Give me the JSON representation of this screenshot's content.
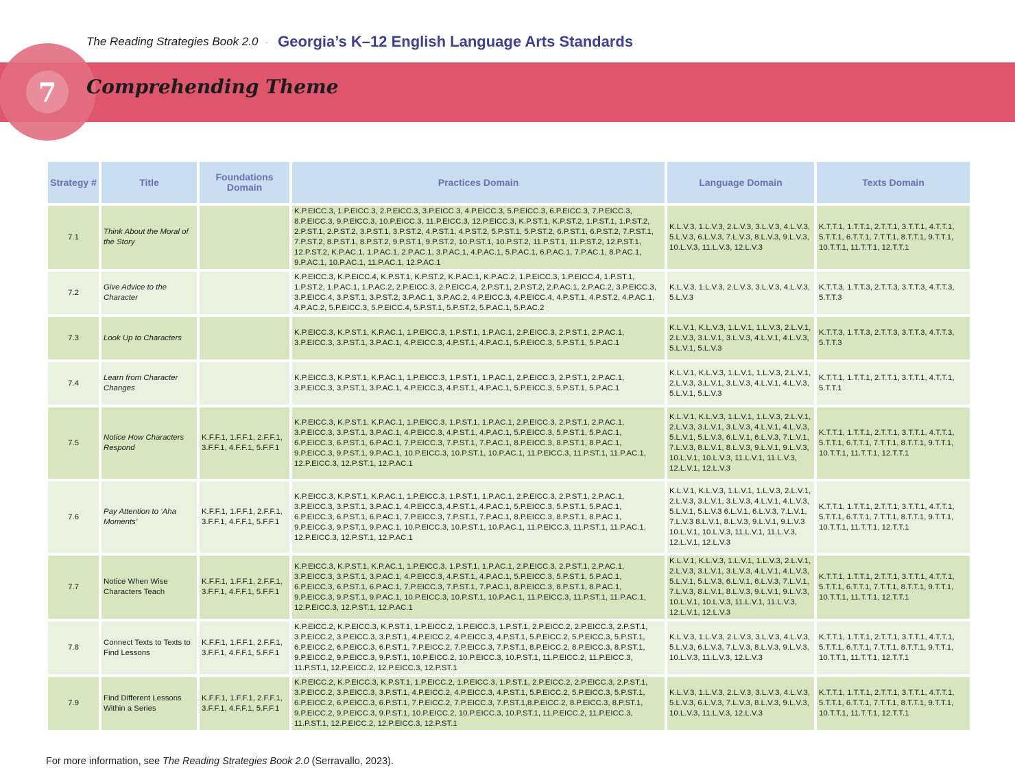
{
  "header": {
    "book_title": "The Reading Strategies Book 2.0",
    "separator": "·",
    "standards_title": "Georgia’s K–12 English Language Arts Standards"
  },
  "chapter": {
    "number": "7",
    "title": "Comprehending Theme"
  },
  "colors": {
    "banner": "#df556b",
    "header_row": "#c9def0",
    "header_text": "#6b6fb0",
    "row_dark": "#d8e5bf",
    "row_light": "#eaf1de",
    "standards_title": "#3d3f8f"
  },
  "table": {
    "headers": {
      "strategy": "Strategy #",
      "title": "Title",
      "foundations": "Foundations Domain",
      "practices": "Practices Domain",
      "language": "Language Domain",
      "texts": "Texts Domain"
    },
    "rows": [
      {
        "num": "7.1",
        "title": "Think About the Moral of the Story",
        "title_italic": true,
        "foundations": "",
        "practices": "K.P.EICC.3, 1.P.EICC.3, 2.P.EICC.3, 3.P.EICC.3, 4.P.EICC.3, 5.P.EICC.3, 6.P.EICC.3, 7.P.EICC.3, 8.P.EICC.3, 9.P.EICC.3, 10.P.EICC.3, 11.P.EICC.3, 12.P.EICC.3, K.P.ST.1, K.P.ST.2, 1.P.ST.1, 1.P.ST.2, 2.P.ST.1, 2.P.ST.2, 3.P.ST.1, 3.P.ST.2, 4.P.ST.1, 4.P.ST.2, 5.P.ST.1, 5.P.ST.2, 6.P.ST.1, 6.P.ST.2, 7.P.ST.1, 7.P.ST.2, 8.P.ST.1, 8.P.ST.2, 9.P.ST.1, 9.P.ST.2, 10.P.ST.1, 10.P.ST.2, 11.P.ST.1, 11.P.ST.2, 12.P.ST.1, 12.P.ST.2, K.P.AC.1, 1.P.AC.1, 2.P.AC.1, 3.P.AC.1, 4.P.AC.1, 5.P.AC.1, 6.P.AC.1, 7.P.AC.1, 8.P.AC.1, 9.P.AC.1, 10.P.AC.1, 11.P.AC.1, 12.P.AC.1",
        "language": "K.L.V.3, 1.L.V.3, 2.L.V.3, 3.L.V.3, 4.L.V.3, 5.L.V.3, 6.L.V.3, 7.L.V.3, 8.L.V.3, 9.L.V.3, 10.L.V.3, 11.L.V.3, 12.L.V.3",
        "texts": "K.T.T.1, 1.T.T.1, 2.T.T.1, 3.T.T.1, 4.T.T.1, 5.T.T.1, 6.T.T.1, 7.T.T.1, 8.T.T.1, 9.T.T.1, 10.T.T.1, 11.T.T.1, 12.T.T.1"
      },
      {
        "num": "7.2",
        "title": "Give Advice to the Character",
        "title_italic": true,
        "foundations": "",
        "practices": "K.P.EICC.3, K.P.EICC.4, K.P.ST.1, K.P.ST.2, K.P.AC.1, K.P.AC.2, 1.P.EICC.3, 1.P.EICC.4, 1.P.ST.1, 1.P.ST.2, 1.P.AC.1, 1.P.AC.2, 2.P.EICC.3, 2.P.EICC.4, 2.P.ST.1, 2.P.ST.2, 2.P.AC.1, 2.P.AC.2, 3.P.EICC.3, 3.P.EICC.4, 3.P.ST.1, 3.P.ST.2, 3.P.AC.1, 3.P.AC.2, 4.P.EICC.3, 4.P.EICC.4, 4.P.ST.1, 4.P.ST.2, 4.P.AC.1, 4.P.AC.2, 5.P.EICC.3, 5.P.EICC.4, 5.P.ST.1, 5.P.ST.2, 5.P.AC.1, 5.P.AC.2",
        "language": "K.L.V.3, 1.L.V.3, 2.L.V.3, 3.L.V.3, 4.L.V.3, 5.L.V.3",
        "texts": "K.T.T.3, 1.T.T.3, 2.T.T.3, 3.T.T.3, 4.T.T.3, 5.T.T.3"
      },
      {
        "num": "7.3",
        "title": "Look Up to Characters",
        "title_italic": true,
        "foundations": "",
        "practices": "K.P.EICC.3, K.P.ST.1, K.P.AC.1, 1.P.EICC.3, 1.P.ST.1, 1.P.AC.1, 2.P.EICC.3, 2.P.ST.1, 2.P.AC.1, 3.P.EICC.3, 3.P.ST.1, 3.P.AC.1, 4.P.EICC.3, 4.P.ST.1, 4.P.AC.1, 5.P.EICC.3, 5.P.ST.1, 5.P.AC.1",
        "language": "K.L.V.1, K.L.V.3, 1.L.V.1, 1.L.V.3, 2.L.V.1, 2.L.V.3, 3.L.V.1, 3.L.V.3, 4.L.V.1, 4.L.V.3, 5.L.V.1, 5.L.V.3",
        "texts": "K.T.T.3, 1.T.T.3, 2.T.T.3, 3.T.T.3, 4.T.T.3, 5.T.T.3"
      },
      {
        "num": "7.4",
        "title": "Learn from Character Changes",
        "title_italic": true,
        "foundations": "",
        "practices": "K.P.EICC.3, K.P.ST.1, K.P.AC.1, 1.P.EICC.3, 1.P.ST.1, 1.P.AC.1, 2.P.EICC.3, 2.P.ST.1, 2.P.AC.1, 3.P.EICC.3, 3.P.ST.1, 3.P.AC.1, 4.P.EICC.3, 4.P.ST.1, 4.P.AC.1, 5.P.EICC.3, 5.P.ST.1, 5.P.AC.1",
        "language": "K.L.V.1, K.L.V.3, 1.L.V.1, 1.L.V.3, 2.L.V.1, 2.L.V.3, 3.L.V.1, 3.L.V.3, 4.L.V.1, 4.L.V.3, 5.L.V.1, 5.L.V.3",
        "texts": "K.T.T.1, 1.T.T.1, 2.T.T.1, 3.T.T.1, 4.T.T.1, 5.T.T.1"
      },
      {
        "num": "7.5",
        "title": "Notice How Characters Respond",
        "title_italic": true,
        "foundations": "K.F.F.1, 1.F.F.1, 2.F.F.1, 3.F.F.1, 4.F.F.1, 5.F.F.1",
        "practices": "K.P.EICC.3, K.P.ST.1, K.P.AC.1, 1.P.EICC.3, 1.P.ST.1, 1.P.AC.1, 2.P.EICC.3, 2.P.ST.1, 2.P.AC.1, 3.P.EICC.3, 3.P.ST.1, 3.P.AC.1, 4.P.EICC.3, 4.P.ST.1, 4.P.AC.1, 5.P.EICC.3, 5.P.ST.1, 5.P.AC.1, 6.P.EICC.3, 6.P.ST.1, 6.P.AC.1, 7.P.EICC.3, 7.P.ST.1, 7.P.AC.1, 8.P.EICC.3, 8.P.ST.1, 8.P.AC.1, 9.P.EICC.3, 9.P.ST.1, 9.P.AC.1, 10.P.EICC.3, 10.P.ST.1, 10.P.AC.1, 11.P.EICC.3, 11.P.ST.1, 11.P.AC.1, 12.P.EICC.3, 12.P.ST.1, 12.P.AC.1",
        "language": "K.L.V.1, K.L.V.3, 1.L.V.1, 1.L.V.3, 2.L.V.1, 2.L.V.3, 3.L.V.1, 3.L.V.3, 4.L.V.1, 4.L.V.3, 5.L.V.1, 5.L.V.3, 6.L.V.1, 6.L.V.3, 7.L.V.1, 7.L.V.3, 8.L.V.1, 8.L.V.3, 9.L.V.1, 9.L.V.3, 10.L.V.1, 10.L.V.3, 11.L.V.1, 11.L.V.3, 12.L.V.1, 12.L.V.3",
        "texts": "K.T.T.1, 1.T.T.1, 2.T.T.1, 3.T.T.1, 4.T.T.1, 5.T.T.1, 6.T.T.1, 7.T.T.1, 8.T.T.1, 9.T.T.1, 10.T.T.1, 11.T.T.1, 12.T.T.1"
      },
      {
        "num": "7.6",
        "title": "Pay Attention to ‘Aha Moments’",
        "title_italic": true,
        "foundations": "K.F.F.1, 1.F.F.1, 2.F.F.1, 3.F.F.1, 4.F.F.1, 5.F.F.1",
        "practices": "K.P.EICC.3, K.P.ST.1, K.P.AC.1, 1.P.EICC.3, 1.P.ST.1, 1.P.AC.1, 2.P.EICC.3, 2.P.ST.1, 2.P.AC.1, 3.P.EICC.3, 3.P.ST.1, 3.P.AC.1, 4.P.EICC.3, 4.P.ST.1, 4.P.AC.1, 5.P.EICC.3, 5.P.ST.1, 5.P.AC.1, 6.P.EICC.3, 6.P.ST.1, 6.P.AC.1, 7.P.EICC.3, 7.P.ST.1, 7.P.AC.1, 8.P.EICC.3, 8.P.ST.1, 8.P.AC.1, 9.P.EICC.3, 9.P.ST.1, 9.P.AC.1, 10.P.EICC.3, 10.P.ST.1, 10.P.AC.1, 11.P.EICC.3, 11.P.ST.1, 11.P.AC.1, 12.P.EICC.3, 12.P.ST.1, 12.P.AC.1",
        "language": "K.L.V.1, K.L.V.3, 1.L.V.1, 1.L.V.3, 2.L.V.1, 2.L.V.3, 3.L.V.1, 3.L.V.3, 4.L.V.1, 4.L.V.3, 5.L.V.1, 5.L.V.3 6.L.V.1, 6.L.V.3, 7.L.V.1, 7.L.V.3 8.L.V.1, 8.L.V.3, 9.L.V.1, 9.L.V.3 10.L.V.1, 10.L.V.3, 11.L.V.1, 11.L.V.3, 12.L.V.1, 12.L.V.3",
        "texts": "K.T.T.1, 1.T.T.1, 2.T.T.1, 3.T.T.1, 4.T.T.1, 5.T.T.1, 6.T.T.1, 7.T.T.1, 8.T.T.1, 9.T.T.1, 10.T.T.1, 11.T.T.1, 12.T.T.1"
      },
      {
        "num": "7.7",
        "title": "Notice When Wise Characters Teach",
        "title_italic": false,
        "foundations": "K.F.F.1, 1.F.F.1, 2.F.F.1, 3.F.F.1, 4.F.F.1, 5.F.F.1",
        "practices": "K.P.EICC.3, K.P.ST.1, K.P.AC.1, 1.P.EICC.3, 1.P.ST.1, 1.P.AC.1, 2.P.EICC.3, 2.P.ST.1, 2.P.AC.1, 3.P.EICC.3, 3.P.ST.1, 3.P.AC.1, 4.P.EICC.3, 4.P.ST.1, 4.P.AC.1, 5.P.EICC.3, 5.P.ST.1, 5.P.AC.1, 6.P.EICC.3, 6.P.ST.1, 6.P.AC.1, 7.P.EICC.3, 7.P.ST.1, 7.P.AC.1, 8.P.EICC.3, 8.P.ST.1, 8.P.AC.1, 9.P.EICC.3, 9.P.ST.1, 9.P.AC.1, 10.P.EICC.3, 10.P.ST.1, 10.P.AC.1, 11.P.EICC.3, 11.P.ST.1, 11.P.AC.1, 12.P.EICC.3, 12.P.ST.1, 12.P.AC.1",
        "language": "K.L.V.1, K.L.V.3, 1.L.V.1, 1.L.V.3, 2.L.V.1, 2.L.V.3, 3.L.V.1, 3.L.V.3, 4.L.V.1, 4.L.V.3, 5.L.V.1, 5.L.V.3, 6.L.V.1, 6.L.V.3, 7.L.V.1, 7.L.V.3, 8.L.V.1, 8.L.V.3, 9.L.V.1, 9.L.V.3, 10.L.V.1, 10.L.V.3, 11.L.V.1, 11.L.V.3, 12.L.V.1, 12.L.V.3",
        "texts": "K.T.T.1, 1.T.T.1, 2.T.T.1, 3.T.T.1, 4.T.T.1, 5.T.T.1, 6.T.T.1, 7.T.T.1, 8.T.T.1, 9.T.T.1, 10.T.T.1, 11.T.T.1, 12.T.T.1"
      },
      {
        "num": "7.8",
        "title": "Connect Texts to Texts to Find Lessons",
        "title_italic": false,
        "foundations": "K.F.F.1, 1.F.F.1, 2.F.F.1, 3.F.F.1, 4.F.F.1, 5.F.F.1",
        "practices": "K.P.EICC.2, K.P.EICC.3, K.P.ST.1, 1.P.EICC.2, 1.P.EICC.3, 1.P.ST.1, 2.P.EICC.2, 2.P.EICC.3, 2.P.ST.1, 3.P.EICC.2, 3.P.EICC.3, 3.P.ST.1, 4.P.EICC.2, 4.P.EICC.3, 4.P.ST.1, 5.P.EICC.2, 5.P.EICC.3, 5.P.ST.1, 6.P.EICC.2, 6.P.EICC.3, 6.P.ST.1, 7.P.EICC.2, 7.P.EICC.3, 7.P.ST.1, 8.P.EICC.2, 8.P.EICC.3, 8.P.ST.1, 9.P.EICC.2, 9.P.EICC.3, 9.P.ST.1, 10.P.EICC.2, 10.P.EICC.3, 10.P.ST.1, 11.P.EICC.2, 11.P.EICC.3, 11.P.ST.1, 12.P.EICC.2, 12.P.EICC.3, 12.P.ST.1",
        "language": "K.L.V.3, 1.L.V.3, 2.L.V.3, 3.L.V.3, 4.L.V.3, 5.L.V.3, 6.L.V.3, 7.L.V.3, 8.L.V.3, 9.L.V.3, 10.L.V.3, 11.L.V.3, 12.L.V.3",
        "texts": "K.T.T.1, 1.T.T.1, 2.T.T.1, 3.T.T.1, 4.T.T.1, 5.T.T.1, 6.T.T.1, 7.T.T.1, 8.T.T.1, 9.T.T.1, 10.T.T.1, 11.T.T.1, 12.T.T.1"
      },
      {
        "num": "7.9",
        "title": "Find Different Lessons Within a Series",
        "title_italic": false,
        "foundations": "K.F.F.1, 1.F.F.1, 2.F.F.1, 3.F.F.1, 4.F.F.1, 5.F.F.1",
        "practices": "K.P.EICC.2, K.P.EICC.3, K.P.ST.1, 1.P.EICC.2, 1.P.EICC.3, 1.P.ST.1, 2.P.EICC.2, 2.P.EICC.3, 2.P.ST.1, 3.P.EICC.2, 3.P.EICC.3, 3.P.ST.1, 4.P.EICC.2, 4.P.EICC.3, 4.P.ST.1, 5.P.EICC.2, 5.P.EICC.3, 5.P.ST.1, 6.P.EICC.2, 6.P.EICC.3, 6.P.ST.1, 7.P.EICC.2, 7.P.EICC.3, 7.P.ST.1,8.P.EICC.2, 8.P.EICC.3, 8.P.ST.1, 9.P.EICC.2, 9.P.EICC.3, 9.P.ST.1, 10.P.EICC.2, 10.P.EICC.3, 10.P.ST.1, 11.P.EICC.2, 11.P.EICC.3, 11.P.ST.1, 12.P.EICC.2, 12.P.EICC.3, 12.P.ST.1",
        "language": "K.L.V.3, 1.L.V.3, 2.L.V.3, 3.L.V.3, 4.L.V.3, 5.L.V.3, 6.L.V.3, 7.L.V.3, 8.L.V.3, 9.L.V.3, 10.L.V.3, 11.L.V.3, 12.L.V.3",
        "texts": "K.T.T.1, 1.T.T.1, 2.T.T.1, 3.T.T.1, 4.T.T.1, 5.T.T.1, 6.T.T.1, 7.T.T.1, 8.T.T.1, 9.T.T.1, 10.T.T.1, 11.T.T.1, 12.T.T.1"
      }
    ]
  },
  "footer": {
    "prefix": "For more information, see ",
    "book": "The Reading Strategies Book 2.0",
    "suffix": " (Serravallo, 2023)."
  }
}
